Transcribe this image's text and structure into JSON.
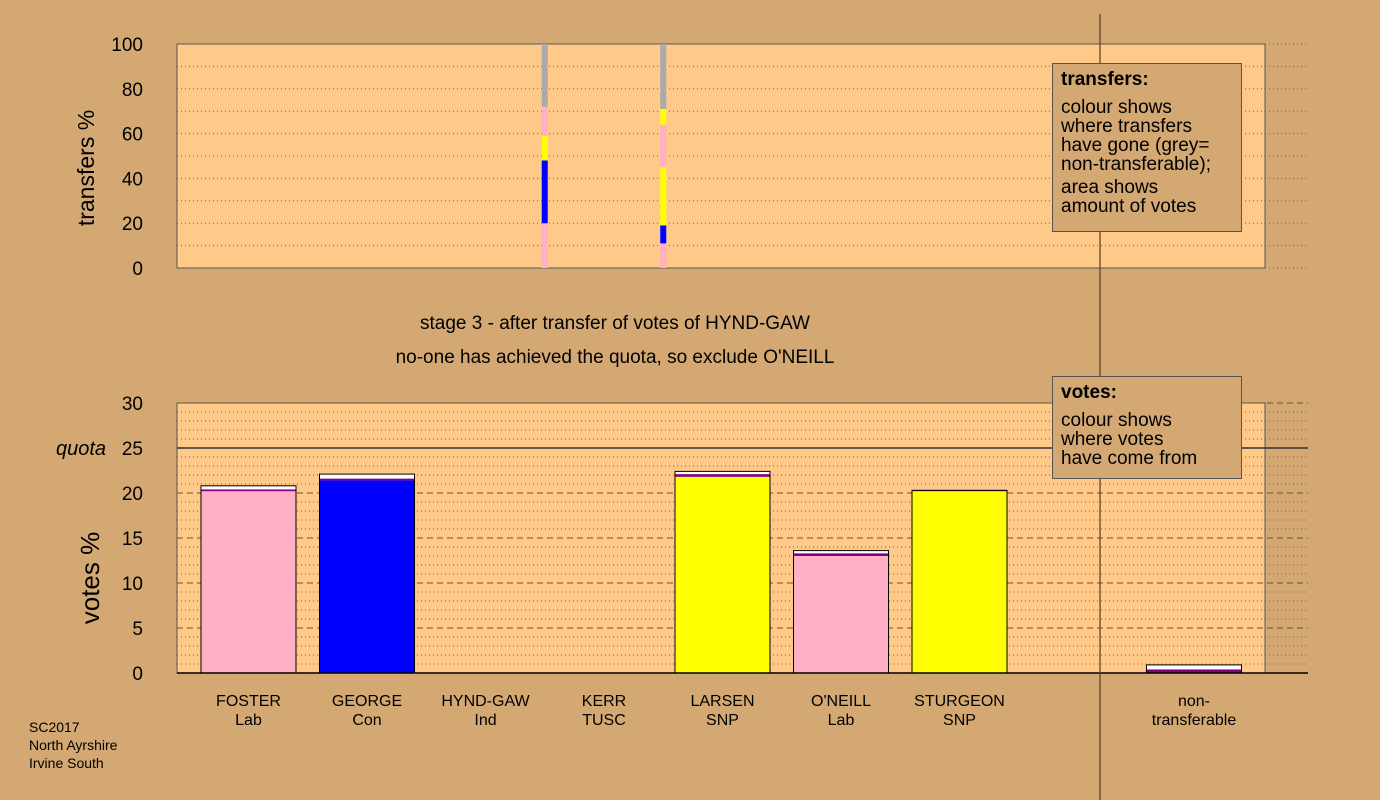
{
  "stage_lines": [
    "stage 3 - after transfer of votes of HYND-GAW",
    "no-one has achieved the quota, so exclude O'NEILL"
  ],
  "footer": [
    "SC2017",
    "North Ayrshire",
    "Irvine South"
  ],
  "legend_transfers": {
    "title": "transfers:",
    "paragraphs": [
      [
        "colour shows",
        "where transfers",
        "have gone (grey=",
        "non-transferable);"
      ],
      [
        "area shows",
        "amount of votes"
      ]
    ]
  },
  "legend_votes": {
    "title": "votes:",
    "paragraphs": [
      [
        "colour shows",
        "where votes",
        "have come from"
      ]
    ]
  },
  "colors": {
    "background": "#d4a872",
    "plot_bg": "#ffc98a",
    "Lab": "#ffb0c4",
    "Con": "#0000ff",
    "SNP": "#ffff00",
    "Ind": "#800080",
    "nontransferable": "#aaaaaa",
    "white": "#ffffff"
  },
  "chart_data": [
    {
      "type": "bar",
      "name": "transfers",
      "ylabel": "transfers %",
      "ylim": [
        0,
        100
      ],
      "yticks": [
        0,
        20,
        40,
        60,
        80,
        100
      ],
      "categories": [
        "FOSTER Lab",
        "GEORGE Con",
        "HYND-GAW Ind",
        "KERR TUSC",
        "LARSEN SNP",
        "O'NEILL Lab",
        "STURGEON SNP"
      ],
      "transfer_bars": [
        {
          "from_index": 2.5,
          "segments": [
            {
              "party": "Lab",
              "value": 20
            },
            {
              "party": "Con",
              "value": 28
            },
            {
              "party": "SNP",
              "value": 11
            },
            {
              "party": "Lab",
              "value": 13
            },
            {
              "party": "nontransferable",
              "value": 28
            }
          ]
        },
        {
          "from_index": 3.5,
          "segments": [
            {
              "party": "Lab",
              "value": 11
            },
            {
              "party": "Con",
              "value": 8
            },
            {
              "party": "SNP",
              "value": 26
            },
            {
              "party": "Lab",
              "value": 19
            },
            {
              "party": "SNP",
              "value": 7
            },
            {
              "party": "nontransferable",
              "value": 29
            }
          ]
        }
      ]
    },
    {
      "type": "bar",
      "name": "votes",
      "ylabel": "votes %",
      "ylim": [
        0,
        30
      ],
      "yticks": [
        0,
        5,
        10,
        15,
        20,
        25,
        30
      ],
      "quota": 25,
      "quota_label": "quota",
      "candidates": [
        {
          "name": "FOSTER",
          "party": "Lab",
          "segments": [
            {
              "party": "Lab",
              "value": 20.2
            },
            {
              "party": "Ind",
              "value": 0.2
            },
            {
              "party": "white",
              "value": 0.4
            }
          ]
        },
        {
          "name": "GEORGE",
          "party": "Con",
          "segments": [
            {
              "party": "Con",
              "value": 21.4
            },
            {
              "party": "Ind",
              "value": 0.2
            },
            {
              "party": "white",
              "value": 0.5
            }
          ]
        },
        {
          "name": "HYND-GAW",
          "party": "Ind",
          "segments": []
        },
        {
          "name": "KERR",
          "party": "TUSC",
          "segments": []
        },
        {
          "name": "LARSEN",
          "party": "SNP",
          "segments": [
            {
              "party": "SNP",
              "value": 21.8
            },
            {
              "party": "Ind",
              "value": 0.3
            },
            {
              "party": "white",
              "value": 0.3
            }
          ]
        },
        {
          "name": "O'NEILL",
          "party": "Lab",
          "segments": [
            {
              "party": "Lab",
              "value": 13.0
            },
            {
              "party": "Ind",
              "value": 0.3
            },
            {
              "party": "white",
              "value": 0.3
            }
          ]
        },
        {
          "name": "STURGEON",
          "party": "SNP",
          "segments": [
            {
              "party": "SNP",
              "value": 20.2
            },
            {
              "party": "Ind",
              "value": 0.1
            }
          ]
        }
      ],
      "nontransferable": {
        "label": [
          "non-",
          "transferable"
        ],
        "segments": [
          {
            "party": "Ind",
            "value": 0.4
          },
          {
            "party": "white",
            "value": 0.5
          }
        ]
      }
    }
  ]
}
